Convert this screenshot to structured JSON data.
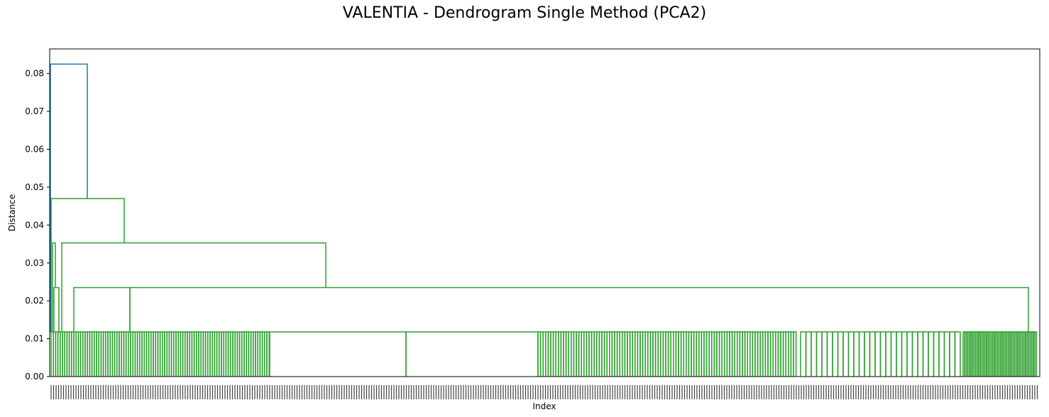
{
  "chart_data": {
    "type": "dendrogram",
    "title": "VALENTIA - Dendrogram Single Method (PCA2)",
    "xlabel": "Index",
    "ylabel": "Distance",
    "ylim": [
      0,
      0.0865
    ],
    "yticks": [
      0.0,
      0.01,
      0.02,
      0.03,
      0.04,
      0.05,
      0.06,
      0.07,
      0.08
    ],
    "grid": false,
    "colors": {
      "above_threshold": "#1f77b4",
      "cluster": "#2ca02c"
    },
    "merge_heights": {
      "root": 0.0825,
      "level_2": 0.047,
      "level_3": 0.0353,
      "level_4": 0.0235,
      "level_5": 0.0118,
      "leaf": 0.0
    }
  }
}
